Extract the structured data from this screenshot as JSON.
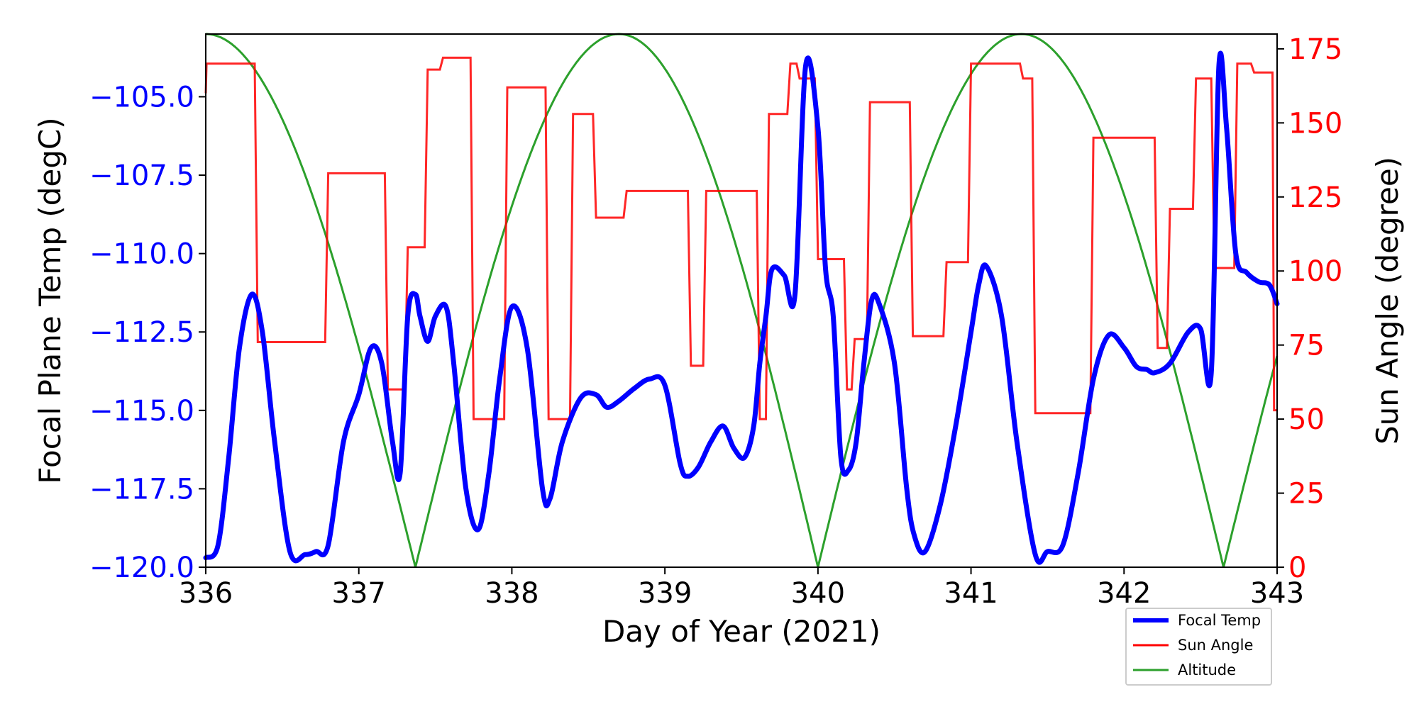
{
  "chart_data": {
    "type": "line",
    "xlabel": "Day of Year (2021)",
    "ylabel_left": "Focal Plane Temp (degC)",
    "ylabel_right": "Sun Angle (degree)",
    "xlim": [
      336,
      343
    ],
    "ylim_left": [
      -120.0,
      -103.0
    ],
    "ylim_right": [
      0,
      180
    ],
    "x_ticks": [
      336,
      337,
      338,
      339,
      340,
      341,
      342,
      343
    ],
    "x_tick_labels": [
      "336",
      "337",
      "338",
      "339",
      "340",
      "341",
      "342",
      "343"
    ],
    "y_left_ticks": [
      -120.0,
      -117.5,
      -115.0,
      -112.5,
      -110.0,
      -107.5,
      -105.0
    ],
    "y_left_tick_labels": [
      "−120.0",
      "−117.5",
      "−115.0",
      "−112.5",
      "−110.0",
      "−107.5",
      "−105.0"
    ],
    "y_right_ticks": [
      0,
      25,
      50,
      75,
      100,
      125,
      150,
      175
    ],
    "y_right_tick_labels": [
      "0",
      "25",
      "50",
      "75",
      "100",
      "125",
      "150",
      "175"
    ],
    "legend_position": "lower-right",
    "colors": {
      "focal": "#0000ff",
      "sun": "#ff0000",
      "altitude": "#2ca02c",
      "left_axis": "#0000ff",
      "right_axis": "#ff0000"
    },
    "series": [
      {
        "name": "Focal Temp",
        "axis": "left",
        "x": [
          336.0,
          336.08,
          336.15,
          336.22,
          336.3,
          336.37,
          336.45,
          336.55,
          336.65,
          336.72,
          336.8,
          336.9,
          337.0,
          337.08,
          337.15,
          337.22,
          337.27,
          337.32,
          337.37,
          337.4,
          337.45,
          337.5,
          337.57,
          337.62,
          337.7,
          337.78,
          337.85,
          337.92,
          338.0,
          338.1,
          338.2,
          338.25,
          338.33,
          338.45,
          338.55,
          338.62,
          338.7,
          338.8,
          338.9,
          339.0,
          339.1,
          339.15,
          339.22,
          339.3,
          339.38,
          339.45,
          339.52,
          339.58,
          339.62,
          339.66,
          339.7,
          339.78,
          339.85,
          339.92,
          340.0,
          340.05,
          340.1,
          340.15,
          340.2,
          340.25,
          340.3,
          340.35,
          340.4,
          340.5,
          340.58,
          340.63,
          340.7,
          340.8,
          340.9,
          341.0,
          341.05,
          341.1,
          341.2,
          341.3,
          341.42,
          341.5,
          341.6,
          341.7,
          341.8,
          341.9,
          342.0,
          342.08,
          342.15,
          342.2,
          342.3,
          342.42,
          342.5,
          342.57,
          342.62,
          342.67,
          342.73,
          342.8,
          342.88,
          342.95,
          343.0
        ],
        "y": [
          -119.7,
          -119.3,
          -116.5,
          -113.0,
          -111.3,
          -112.5,
          -116.0,
          -119.5,
          -119.6,
          -119.5,
          -119.3,
          -116.0,
          -114.5,
          -113.0,
          -113.5,
          -116.0,
          -117.0,
          -112.0,
          -111.3,
          -112.0,
          -112.8,
          -112.0,
          -111.7,
          -113.5,
          -117.5,
          -118.8,
          -117.0,
          -114.0,
          -111.7,
          -113.0,
          -117.5,
          -117.8,
          -116.0,
          -114.6,
          -114.5,
          -114.9,
          -114.7,
          -114.3,
          -114.0,
          -114.2,
          -116.7,
          -117.1,
          -116.8,
          -116.0,
          -115.5,
          -116.2,
          -116.5,
          -115.5,
          -113.5,
          -112.0,
          -110.5,
          -110.7,
          -111.3,
          -104.0,
          -106.0,
          -110.5,
          -112.0,
          -116.5,
          -116.9,
          -116.0,
          -113.5,
          -111.5,
          -111.6,
          -113.5,
          -117.5,
          -119.0,
          -119.5,
          -118.0,
          -115.5,
          -112.5,
          -111.0,
          -110.4,
          -112.0,
          -116.0,
          -119.6,
          -119.5,
          -119.3,
          -117.0,
          -114.0,
          -112.6,
          -113.0,
          -113.6,
          -113.7,
          -113.8,
          -113.5,
          -112.5,
          -112.4,
          -113.8,
          -104.0,
          -106.0,
          -110.0,
          -110.6,
          -110.9,
          -111.0,
          -111.6
        ]
      },
      {
        "name": "Sun Angle",
        "axis": "right",
        "x": [
          336.0,
          336.005,
          336.32,
          336.34,
          336.78,
          336.8,
          337.17,
          337.19,
          337.3,
          337.32,
          337.43,
          337.45,
          337.53,
          337.55,
          337.73,
          337.75,
          337.95,
          337.97,
          338.22,
          338.24,
          338.38,
          338.4,
          338.53,
          338.55,
          338.73,
          338.75,
          339.15,
          339.17,
          339.25,
          339.27,
          339.6,
          339.62,
          339.66,
          339.68,
          339.8,
          339.82,
          339.86,
          339.88,
          339.98,
          340.0,
          340.17,
          340.19,
          340.22,
          340.24,
          340.32,
          340.34,
          340.6,
          340.62,
          340.82,
          340.84,
          340.98,
          341.0,
          341.32,
          341.34,
          341.4,
          341.42,
          341.78,
          341.8,
          342.2,
          342.22,
          342.28,
          342.3,
          342.45,
          342.47,
          342.57,
          342.59,
          342.72,
          342.74,
          342.83,
          342.85,
          342.97,
          342.98,
          343.0
        ],
        "y": [
          160,
          170,
          170,
          76,
          76,
          133,
          133,
          60,
          60,
          108,
          108,
          168,
          168,
          172,
          172,
          50,
          50,
          162,
          162,
          50,
          50,
          153,
          153,
          118,
          118,
          127,
          127,
          68,
          68,
          127,
          127,
          50,
          50,
          153,
          153,
          170,
          170,
          165,
          165,
          104,
          104,
          60,
          60,
          77,
          77,
          157,
          157,
          78,
          78,
          103,
          103,
          170,
          170,
          165,
          165,
          52,
          52,
          145,
          145,
          74,
          74,
          121,
          121,
          165,
          165,
          101,
          101,
          170,
          170,
          167,
          167,
          53,
          53
        ]
      },
      {
        "name": "Altitude",
        "axis": "right",
        "x": [
          336.0,
          336.15,
          336.3,
          336.5,
          336.7,
          336.9,
          337.1,
          337.3,
          337.37,
          337.45,
          337.6,
          337.8,
          338.0,
          338.2,
          338.4,
          338.6,
          338.7,
          338.8,
          339.0,
          339.2,
          339.4,
          339.6,
          339.8,
          339.95,
          340.0,
          340.05,
          340.2,
          340.4,
          340.6,
          340.8,
          341.0,
          341.2,
          341.33,
          341.45,
          341.65,
          341.85,
          342.05,
          342.25,
          342.45,
          342.6,
          342.65,
          342.72,
          342.8,
          342.9,
          343.0
        ]
      }
    ]
  },
  "legend": {
    "items": [
      {
        "label": "Focal Temp"
      },
      {
        "label": "Sun Angle"
      },
      {
        "label": "Altitude"
      }
    ]
  }
}
